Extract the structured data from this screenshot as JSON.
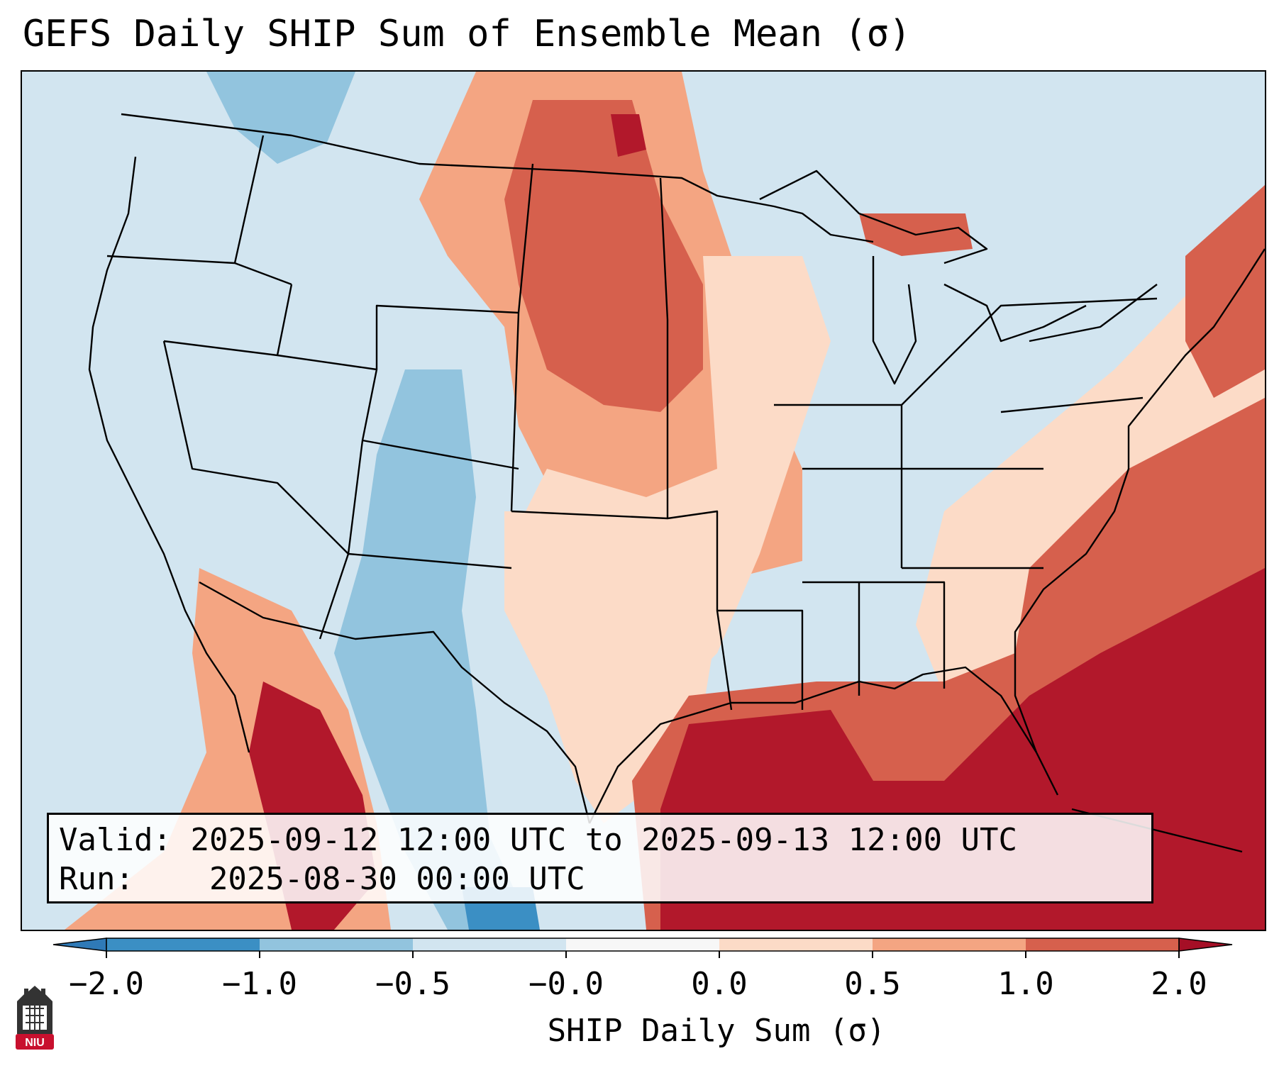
{
  "title": "GEFS Daily SHIP Sum of Ensemble Mean (σ)",
  "info": {
    "valid_label": "Valid:",
    "valid_value": "2025-09-12 12:00 UTC to 2025-09-13 12:00 UTC",
    "run_label": "Run:",
    "run_value": "2025-08-30 00:00 UTC"
  },
  "colorbar": {
    "label": "SHIP Daily Sum (σ)",
    "ticks": [
      "−2.0",
      "−1.0",
      "−0.5",
      "−0.0",
      "0.0",
      "0.5",
      "1.0",
      "2.0"
    ],
    "colors": [
      "#3b8fc4",
      "#92c4de",
      "#d2e5f0",
      "#f7f7f7",
      "#fcdbc7",
      "#f4a582",
      "#d6604d",
      "#b2182b"
    ],
    "under_color": "#2f7ab7",
    "over_color": "#a50f26"
  },
  "map": {
    "region": "Contiguous United States",
    "background_color": "#d2e5f0"
  },
  "logo": {
    "text": "NIU",
    "color": "#c8102e"
  }
}
